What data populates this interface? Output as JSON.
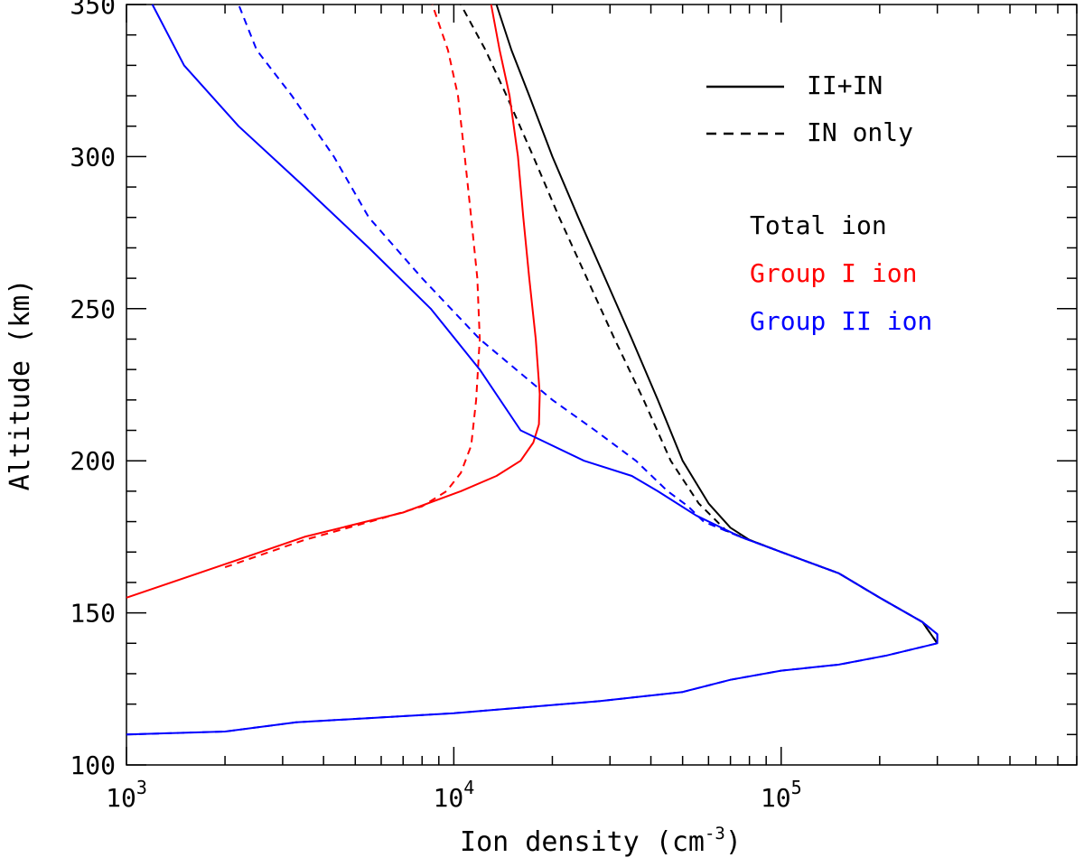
{
  "chart_data": {
    "type": "line",
    "xlabel": "Ion density (cm",
    "xlabel_exponent": "-3",
    "xlabel_close": ")",
    "ylabel": "Altitude (km)",
    "x_scale": "log",
    "xlim": [
      1000,
      800000
    ],
    "ylim": [
      100,
      350
    ],
    "x_ticks": [
      {
        "value": 1000,
        "base": "10",
        "exp": "3"
      },
      {
        "value": 10000,
        "base": "10",
        "exp": "4"
      },
      {
        "value": 100000,
        "base": "10",
        "exp": "5"
      }
    ],
    "y_ticks": [
      {
        "value": 100,
        "label": "100"
      },
      {
        "value": 150,
        "label": "150"
      },
      {
        "value": 200,
        "label": "200"
      },
      {
        "value": 250,
        "label": "250"
      },
      {
        "value": 300,
        "label": "300"
      },
      {
        "value": 350,
        "label": "350"
      }
    ],
    "grid": false,
    "legend_placement": "top-right",
    "line_legend": [
      {
        "label": "II+IN",
        "style": "solid"
      },
      {
        "label": "IN only",
        "style": "dashed"
      }
    ],
    "color_legend": [
      {
        "label": "Total ion",
        "color": "#000000"
      },
      {
        "label": "Group I ion",
        "color": "#ff0000"
      },
      {
        "label": "Group II ion",
        "color": "#0000ff"
      }
    ],
    "series": [
      {
        "group": "Total ion",
        "style": "solid",
        "color": "#000000",
        "points": [
          [
            300000,
            140
          ],
          [
            270000,
            147
          ],
          [
            200000,
            155
          ],
          [
            150000,
            163
          ],
          [
            100000,
            170
          ],
          [
            80000,
            174
          ],
          [
            70000,
            178
          ],
          [
            60000,
            186
          ],
          [
            50000,
            200
          ],
          [
            42000,
            220
          ],
          [
            35000,
            240
          ],
          [
            29000,
            260
          ],
          [
            24000,
            280
          ],
          [
            20000,
            300
          ],
          [
            17000,
            320
          ],
          [
            15000,
            335
          ],
          [
            13500,
            350
          ]
        ]
      },
      {
        "group": "Total ion",
        "style": "dashed",
        "color": "#000000",
        "points": [
          [
            300000,
            140
          ],
          [
            270000,
            147
          ],
          [
            200000,
            155
          ],
          [
            150000,
            163
          ],
          [
            100000,
            170
          ],
          [
            80000,
            174
          ],
          [
            68000,
            177
          ],
          [
            56000,
            186
          ],
          [
            46000,
            200
          ],
          [
            38000,
            220
          ],
          [
            31000,
            240
          ],
          [
            25500,
            260
          ],
          [
            21000,
            280
          ],
          [
            17500,
            300
          ],
          [
            14500,
            320
          ],
          [
            12500,
            335
          ],
          [
            10500,
            350
          ]
        ]
      },
      {
        "group": "Group I ion",
        "style": "solid",
        "color": "#ff0000",
        "points": [
          [
            1000,
            155
          ],
          [
            2000,
            166
          ],
          [
            3500,
            175
          ],
          [
            7000,
            183
          ],
          [
            10500,
            190
          ],
          [
            13500,
            195
          ],
          [
            16000,
            200
          ],
          [
            17500,
            206
          ],
          [
            18200,
            212
          ],
          [
            18300,
            222
          ],
          [
            17800,
            240
          ],
          [
            17000,
            260
          ],
          [
            16300,
            280
          ],
          [
            15700,
            300
          ],
          [
            14800,
            320
          ],
          [
            13800,
            335
          ],
          [
            13000,
            350
          ]
        ]
      },
      {
        "group": "Group I ion",
        "style": "dashed",
        "color": "#ff0000",
        "points": [
          [
            2000,
            165
          ],
          [
            3500,
            174
          ],
          [
            6000,
            181
          ],
          [
            8000,
            185
          ],
          [
            9500,
            190
          ],
          [
            10500,
            196
          ],
          [
            11300,
            205
          ],
          [
            11700,
            220
          ],
          [
            12000,
            240
          ],
          [
            11800,
            260
          ],
          [
            11300,
            280
          ],
          [
            10800,
            300
          ],
          [
            10300,
            320
          ],
          [
            9600,
            335
          ],
          [
            8600,
            350
          ]
        ]
      },
      {
        "group": "Group II ion",
        "style": "solid",
        "color": "#0000ff",
        "points": [
          [
            1000,
            110
          ],
          [
            2000,
            111
          ],
          [
            3300,
            114
          ],
          [
            10000,
            117
          ],
          [
            28000,
            121
          ],
          [
            50000,
            124
          ],
          [
            70000,
            128
          ],
          [
            100000,
            131
          ],
          [
            150000,
            133
          ],
          [
            210000,
            136
          ],
          [
            300000,
            140
          ],
          [
            300000,
            143
          ],
          [
            270000,
            147
          ],
          [
            200000,
            155
          ],
          [
            150000,
            163
          ],
          [
            100000,
            170
          ],
          [
            75000,
            175
          ],
          [
            55000,
            182
          ],
          [
            42000,
            190
          ],
          [
            35000,
            195
          ],
          [
            25000,
            200
          ],
          [
            16000,
            210
          ],
          [
            12000,
            230
          ],
          [
            8500,
            250
          ],
          [
            5500,
            270
          ],
          [
            3500,
            290
          ],
          [
            2200,
            310
          ],
          [
            1500,
            330
          ],
          [
            1200,
            350
          ]
        ]
      },
      {
        "group": "Group II ion",
        "style": "dashed",
        "color": "#0000ff",
        "points": [
          [
            1000,
            110
          ],
          [
            2000,
            111
          ],
          [
            3300,
            114
          ],
          [
            10000,
            117
          ],
          [
            28000,
            121
          ],
          [
            50000,
            124
          ],
          [
            70000,
            128
          ],
          [
            100000,
            131
          ],
          [
            150000,
            133
          ],
          [
            210000,
            136
          ],
          [
            300000,
            140
          ],
          [
            300000,
            143
          ],
          [
            270000,
            147
          ],
          [
            200000,
            155
          ],
          [
            150000,
            163
          ],
          [
            100000,
            170
          ],
          [
            75000,
            175
          ],
          [
            58000,
            180
          ],
          [
            52000,
            185
          ],
          [
            45000,
            190
          ],
          [
            36000,
            200
          ],
          [
            27000,
            210
          ],
          [
            20000,
            220
          ],
          [
            12000,
            240
          ],
          [
            8000,
            260
          ],
          [
            5500,
            280
          ],
          [
            4300,
            300
          ],
          [
            3200,
            320
          ],
          [
            2500,
            335
          ],
          [
            2200,
            350
          ]
        ]
      }
    ]
  }
}
